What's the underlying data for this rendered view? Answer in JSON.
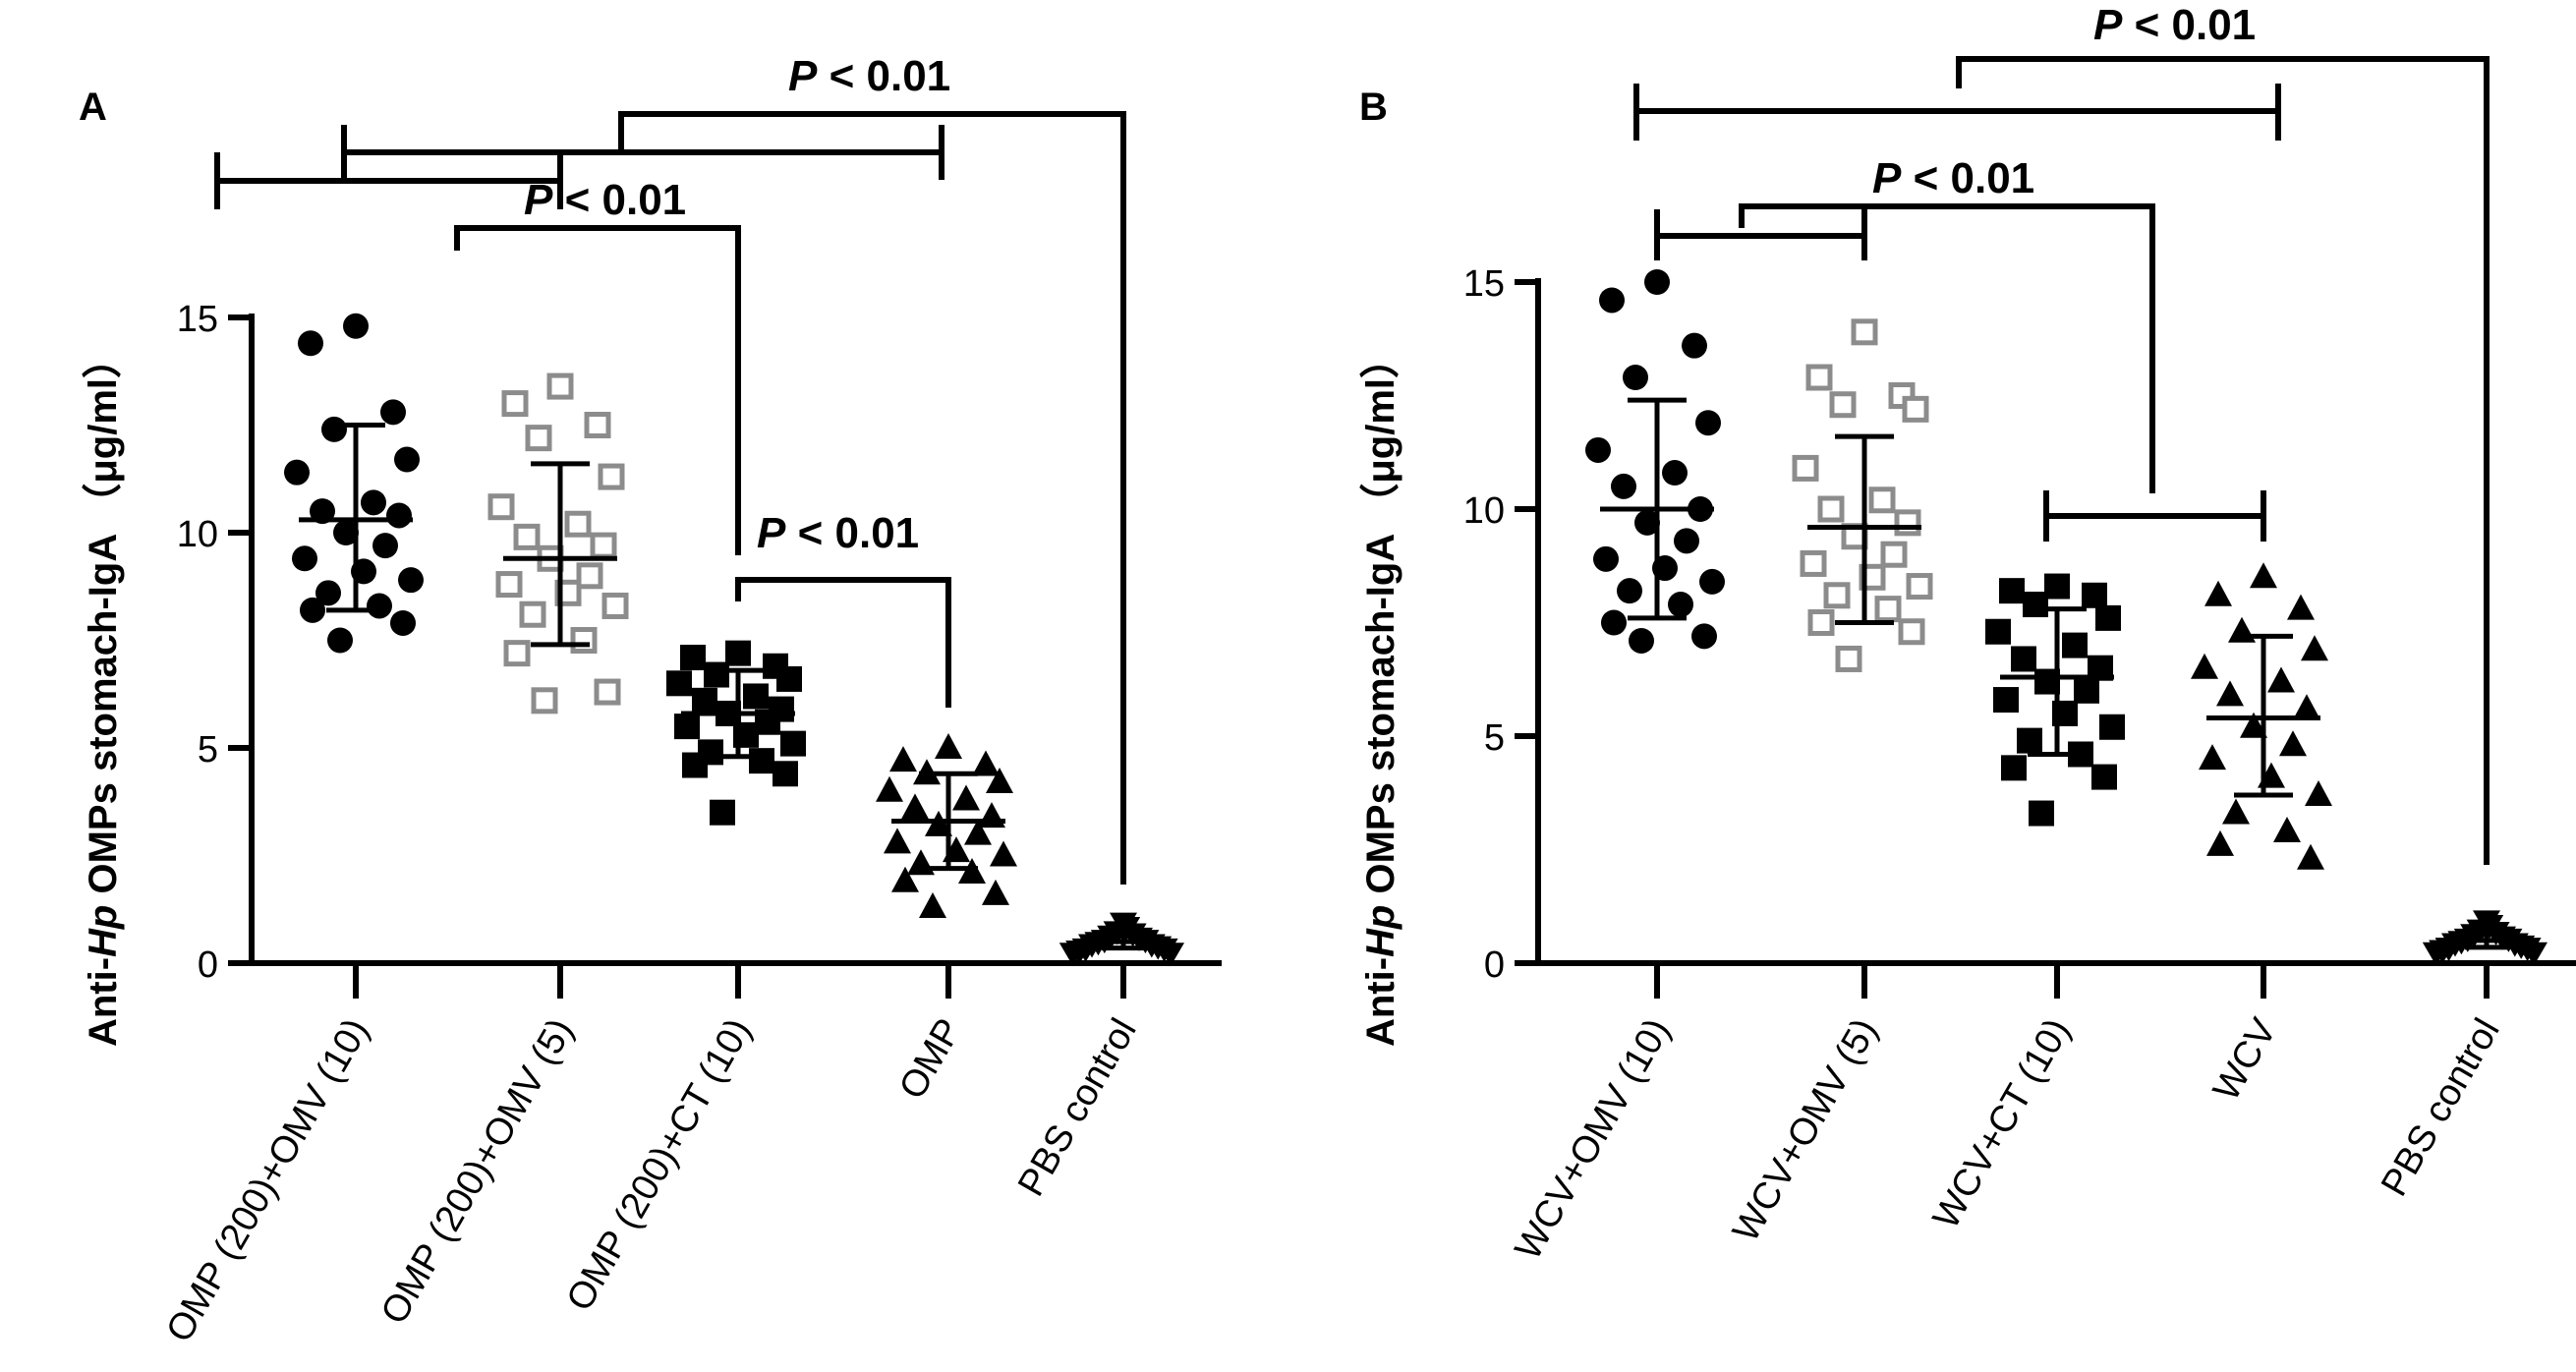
{
  "colors": {
    "axis": "#000000",
    "black_marker": "#000000",
    "gray_marker": "#8c8c8c"
  },
  "chart_data": [
    {
      "panel_label": "A",
      "type": "scatter",
      "ylabel": {
        "pre": "Anti-",
        "italic": "Hp",
        "post": " OMPs  stomach-IgA （μg/ml）"
      },
      "ylim": [
        0,
        15
      ],
      "yticks": [
        0,
        5,
        10,
        15
      ],
      "grid": false,
      "categories": [
        "OMP (200)+OMV (10)",
        "OMP (200)+OMV (5)",
        "OMP (200)+CT (10)",
        "OMP",
        "PBS control"
      ],
      "series": [
        {
          "marker": "circle",
          "color": "#000000",
          "mean": 10.3,
          "sd_low": 8.2,
          "sd_high": 12.5,
          "values": [
            14.8,
            14.4,
            12.8,
            12.4,
            11.7,
            11.4,
            10.7,
            10.5,
            10.4,
            10.0,
            9.7,
            9.4,
            9.1,
            8.9,
            8.6,
            8.3,
            8.2,
            7.9,
            7.5
          ]
        },
        {
          "marker": "square-open",
          "color": "#8c8c8c",
          "mean": 9.4,
          "sd_low": 7.4,
          "sd_high": 11.6,
          "values": [
            13.4,
            13.0,
            12.5,
            12.2,
            11.3,
            10.6,
            10.2,
            9.9,
            9.7,
            9.4,
            9.0,
            8.8,
            8.6,
            8.3,
            8.1,
            7.5,
            7.2,
            6.3,
            6.1
          ]
        },
        {
          "marker": "square",
          "color": "#000000",
          "mean": 5.8,
          "sd_low": 4.8,
          "sd_high": 6.8,
          "values": [
            7.2,
            7.1,
            6.9,
            6.7,
            6.6,
            6.5,
            6.2,
            6.1,
            5.9,
            5.8,
            5.6,
            5.5,
            5.3,
            5.1,
            4.9,
            4.7,
            4.6,
            4.4,
            3.5
          ]
        },
        {
          "marker": "triangle-up",
          "color": "#000000",
          "mean": 3.3,
          "sd_low": 2.2,
          "sd_high": 4.4,
          "values": [
            5.0,
            4.7,
            4.6,
            4.4,
            4.2,
            4.0,
            3.8,
            3.6,
            3.4,
            3.2,
            3.0,
            2.8,
            2.6,
            2.5,
            2.3,
            2.1,
            1.9,
            1.6,
            1.3
          ]
        },
        {
          "marker": "triangle-down",
          "color": "#000000",
          "mean": 0.5,
          "sd_low": 0.35,
          "sd_high": 0.65,
          "values": [
            0.9,
            0.8,
            0.7,
            0.65,
            0.6,
            0.55,
            0.5,
            0.5,
            0.45,
            0.4,
            0.4,
            0.35,
            0.3,
            0.3,
            0.25,
            0.2,
            0.2
          ]
        }
      ],
      "comparisons": [
        {
          "text_italic": "P",
          "text": " < 0.01",
          "from": [
            [
              0,
              1
            ],
            [
              2
            ]
          ],
          "to": [
            [
              3
            ]
          ]
        },
        {
          "text_italic": "P",
          "text": " < 0.01",
          "from": [
            [
              2
            ]
          ],
          "to": [
            [
              3
            ]
          ]
        },
        {
          "text_italic": "P",
          "text": " < 0.01",
          "from": [
            [
              0,
              3
            ]
          ],
          "to": [
            [
              4
            ]
          ]
        }
      ]
    },
    {
      "panel_label": "B",
      "type": "scatter",
      "ylabel": {
        "pre": "Anti-",
        "italic": "Hp",
        "post": " OMPs  stomach-IgA （μg/ml）"
      },
      "ylim": [
        0,
        15
      ],
      "yticks": [
        0,
        5,
        10,
        15
      ],
      "grid": false,
      "categories": [
        "WCV+OMV (10)",
        "WCV+OMV (5)",
        "WCV+CT (10)",
        "WCV",
        "PBS control"
      ],
      "series": [
        {
          "marker": "circle",
          "color": "#000000",
          "mean": 10.0,
          "sd_low": 7.6,
          "sd_high": 12.4,
          "values": [
            15.0,
            14.6,
            13.6,
            12.9,
            11.9,
            11.3,
            10.8,
            10.5,
            10.0,
            9.7,
            9.3,
            8.9,
            8.7,
            8.4,
            8.2,
            7.9,
            7.5,
            7.2,
            7.1
          ]
        },
        {
          "marker": "square-open",
          "color": "#8c8c8c",
          "mean": 9.6,
          "sd_low": 7.5,
          "sd_high": 11.6,
          "values": [
            13.9,
            12.9,
            12.5,
            12.3,
            12.2,
            10.9,
            10.2,
            10.0,
            9.7,
            9.4,
            9.0,
            8.8,
            8.5,
            8.3,
            8.1,
            7.8,
            7.5,
            7.3,
            6.7
          ]
        },
        {
          "marker": "square",
          "color": "#000000",
          "mean": 6.3,
          "sd_low": 4.6,
          "sd_high": 7.8,
          "values": [
            8.3,
            8.2,
            8.1,
            7.9,
            7.6,
            7.3,
            7.0,
            6.7,
            6.5,
            6.2,
            6.0,
            5.8,
            5.5,
            5.2,
            4.9,
            4.6,
            4.3,
            4.1,
            3.3
          ]
        },
        {
          "marker": "triangle-up",
          "color": "#000000",
          "mean": 5.4,
          "sd_low": 3.7,
          "sd_high": 7.2,
          "values": [
            8.5,
            8.1,
            7.8,
            7.3,
            6.9,
            6.5,
            6.2,
            5.9,
            5.6,
            5.2,
            4.8,
            4.5,
            4.1,
            3.7,
            3.3,
            2.9,
            2.6,
            2.3
          ]
        },
        {
          "marker": "triangle-down",
          "color": "#000000",
          "mean": 0.5,
          "sd_low": 0.35,
          "sd_high": 0.65,
          "values": [
            0.9,
            0.8,
            0.7,
            0.65,
            0.6,
            0.55,
            0.5,
            0.5,
            0.45,
            0.4,
            0.4,
            0.35,
            0.3,
            0.3,
            0.25,
            0.2,
            0.2
          ]
        }
      ],
      "comparisons": [
        {
          "text_italic": "P",
          "text": " < 0.01",
          "from": [
            [
              0,
              1
            ]
          ],
          "to": [
            [
              2,
              3
            ]
          ]
        },
        {
          "text_italic": "P",
          "text": " < 0.01",
          "from": [
            [
              0,
              3
            ]
          ],
          "to": [
            [
              4
            ]
          ]
        }
      ]
    }
  ]
}
